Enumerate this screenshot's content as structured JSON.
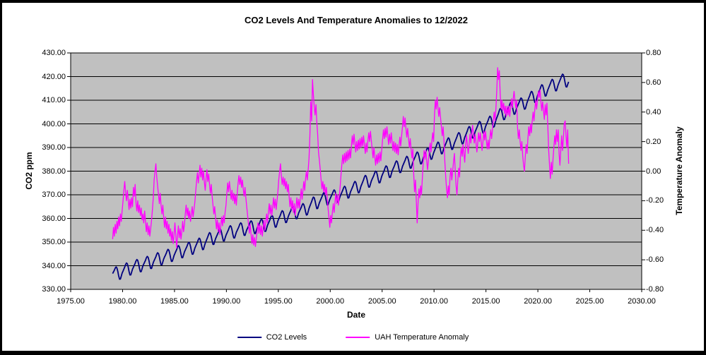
{
  "title": "CO2 Levels And Temperature Anomalies to 12/2022",
  "axes": {
    "left": {
      "title": "CO2 ppm",
      "tick_labels": [
        "430.00",
        "420.00",
        "410.00",
        "400.00",
        "390.00",
        "380.00",
        "370.00",
        "360.00",
        "350.00",
        "340.00",
        "330.00"
      ]
    },
    "right": {
      "title": "Temperature Anomaly",
      "tick_labels": [
        "0.80",
        "0.60",
        "0.40",
        "0.20",
        "0.00",
        "-0.20",
        "-0.40",
        "-0.60",
        "-0.80"
      ]
    },
    "x": {
      "title": "Date",
      "tick_labels": [
        "1975.00",
        "1980.00",
        "1985.00",
        "1990.00",
        "1995.00",
        "2000.00",
        "2005.00",
        "2010.00",
        "2015.00",
        "2020.00",
        "2025.00",
        "2030.00"
      ]
    }
  },
  "legend": {
    "items": [
      {
        "label": "CO2 Levels"
      },
      {
        "label": "UAH Temperature Anomaly"
      }
    ]
  },
  "colors": {
    "plot_bg": "#C0C0C0",
    "gridline": "#000000",
    "axis": "#000000",
    "frame_border": "#000000",
    "co2_line": "#000080",
    "temp_line": "#FF00FF"
  },
  "chart_data": {
    "type": "line",
    "title": "CO2 Levels And Temperature Anomalies to 12/2022",
    "xlabel": "Date",
    "ylabel_left": "CO2 ppm",
    "ylabel_right": "Temperature Anomaly",
    "x_range": [
      1975,
      2030
    ],
    "y_left_range": [
      330,
      430
    ],
    "y_right_range": [
      -0.8,
      0.8
    ],
    "grid": "horizontal gridlines every 10 ppm (left axis)",
    "legend_position": "bottom center",
    "series": [
      {
        "name": "CO2 Levels",
        "axis": "left",
        "color": "#000080",
        "x_start": 1979.0,
        "x_end": 2023.0,
        "resolution": "monthly sawtooth (annual mean + seasonal cycle)",
        "annual_means_1979_2022": [
          336.8,
          338.7,
          340.1,
          341.4,
          343.0,
          344.4,
          346.0,
          347.4,
          349.2,
          351.6,
          353.1,
          354.4,
          355.6,
          356.4,
          357.1,
          358.8,
          360.8,
          362.6,
          363.7,
          366.7,
          368.4,
          369.5,
          371.1,
          373.2,
          375.8,
          377.5,
          379.8,
          381.9,
          383.8,
          385.6,
          387.4,
          389.9,
          391.6,
          393.9,
          396.5,
          398.6,
          400.8,
          404.2,
          406.6,
          408.5,
          411.4,
          414.2,
          416.4,
          418.6
        ],
        "seasonal_cycle_ppm": [
          -0.1,
          0.6,
          1.3,
          2.2,
          2.7,
          2.2,
          0.7,
          -1.3,
          -2.9,
          -3.0,
          -1.9,
          -0.8
        ]
      },
      {
        "name": "UAH Temperature Anomaly",
        "axis": "right",
        "color": "#FF00FF",
        "x_start": 1979.0,
        "x_end": 2023.0,
        "resolution": "monthly",
        "monthly_values_1979_2022": [
          [
            -0.46,
            -0.38,
            -0.44,
            -0.36,
            -0.42,
            -0.34,
            -0.39,
            -0.31,
            -0.37,
            -0.29,
            -0.34,
            -0.27
          ],
          [
            -0.2,
            -0.13,
            -0.07,
            -0.14,
            -0.2,
            -0.13,
            -0.19,
            -0.26,
            -0.19,
            -0.25,
            -0.18,
            -0.24
          ],
          [
            -0.11,
            -0.17,
            -0.09,
            -0.21,
            -0.27,
            -0.2,
            -0.28,
            -0.23,
            -0.3,
            -0.25,
            -0.33,
            -0.29
          ],
          [
            -0.35,
            -0.27,
            -0.34,
            -0.41,
            -0.35,
            -0.43,
            -0.37,
            -0.44,
            -0.39,
            -0.33,
            -0.26,
            -0.18
          ],
          [
            -0.06,
            0.0,
            0.05,
            -0.04,
            -0.1,
            -0.16,
            -0.22,
            -0.15,
            -0.23,
            -0.29,
            -0.23,
            -0.31
          ],
          [
            -0.38,
            -0.31,
            -0.39,
            -0.34,
            -0.42,
            -0.36,
            -0.44,
            -0.39,
            -0.47,
            -0.41,
            -0.49,
            -0.43
          ],
          [
            -0.35,
            -0.43,
            -0.52,
            -0.44,
            -0.37,
            -0.45,
            -0.39,
            -0.46,
            -0.41,
            -0.34,
            -0.41,
            -0.36
          ],
          [
            -0.29,
            -0.23,
            -0.3,
            -0.25,
            -0.32,
            -0.27,
            -0.34,
            -0.29,
            -0.24,
            -0.31,
            -0.26,
            -0.21
          ],
          [
            -0.14,
            -0.07,
            -0.01,
            -0.08,
            -0.02,
            0.04,
            -0.04,
            0.02,
            -0.06,
            0.0,
            -0.07,
            -0.13
          ],
          [
            -0.05,
            0.01,
            -0.07,
            -0.02,
            -0.09,
            -0.15,
            -0.09,
            -0.17,
            -0.23,
            -0.29,
            -0.24,
            -0.32
          ],
          [
            -0.39,
            -0.33,
            -0.41,
            -0.35,
            -0.43,
            -0.37,
            -0.31,
            -0.37,
            -0.3,
            -0.35,
            -0.28,
            -0.23
          ],
          [
            -0.15,
            -0.08,
            -0.14,
            -0.07,
            -0.13,
            -0.19,
            -0.13,
            -0.2,
            -0.15,
            -0.22,
            -0.16,
            -0.23
          ],
          [
            -0.15,
            -0.08,
            -0.03,
            -0.09,
            -0.04,
            -0.11,
            -0.06,
            -0.12,
            -0.17,
            -0.11,
            -0.18,
            -0.24
          ],
          [
            -0.3,
            -0.36,
            -0.42,
            -0.36,
            -0.43,
            -0.49,
            -0.43,
            -0.5,
            -0.45,
            -0.51,
            -0.46,
            -0.41
          ],
          [
            -0.35,
            -0.42,
            -0.36,
            -0.43,
            -0.37,
            -0.44,
            -0.38,
            -0.33,
            -0.4,
            -0.34,
            -0.29,
            -0.35
          ],
          [
            -0.28,
            -0.22,
            -0.29,
            -0.23,
            -0.3,
            -0.24,
            -0.18,
            -0.25,
            -0.19,
            -0.26,
            -0.2,
            -0.14
          ],
          [
            -0.06,
            0.0,
            0.05,
            -0.03,
            -0.09,
            -0.04,
            -0.1,
            -0.05,
            -0.12,
            -0.07,
            -0.14,
            -0.09
          ],
          [
            -0.17,
            -0.24,
            -0.18,
            -0.26,
            -0.2,
            -0.28,
            -0.22,
            -0.3,
            -0.24,
            -0.18,
            -0.25,
            -0.19
          ],
          [
            -0.25,
            -0.18,
            -0.12,
            -0.19,
            -0.13,
            -0.07,
            -0.13,
            -0.05,
            0.0,
            -0.06,
            0.01,
            0.09
          ],
          [
            0.24,
            0.47,
            0.34,
            0.62,
            0.52,
            0.44,
            0.38,
            0.45,
            0.33,
            0.25,
            0.13,
            0.07
          ],
          [
            0.01,
            -0.06,
            -0.12,
            -0.07,
            -0.14,
            -0.09,
            -0.16,
            -0.11,
            -0.18,
            -0.25,
            -0.31,
            -0.38
          ],
          [
            -0.3,
            -0.35,
            -0.28,
            -0.22,
            -0.28,
            -0.21,
            -0.15,
            -0.22,
            -0.16,
            -0.23,
            -0.17,
            -0.1
          ],
          [
            -0.02,
            0.05,
            0.11,
            0.05,
            0.12,
            0.06,
            0.13,
            0.07,
            0.14,
            0.08,
            0.15,
            0.09
          ],
          [
            0.17,
            0.24,
            0.18,
            0.25,
            0.19,
            0.13,
            0.2,
            0.14,
            0.21,
            0.15,
            0.22,
            0.16
          ],
          [
            0.23,
            0.17,
            0.24,
            0.18,
            0.12,
            0.19,
            0.13,
            0.2,
            0.26,
            0.2,
            0.27,
            0.21
          ],
          [
            0.15,
            0.09,
            0.16,
            0.1,
            0.04,
            0.11,
            0.05,
            0.12,
            0.06,
            0.13,
            0.07,
            0.14
          ],
          [
            0.21,
            0.28,
            0.22,
            0.29,
            0.23,
            0.3,
            0.24,
            0.18,
            0.25,
            0.19,
            0.26,
            0.2
          ],
          [
            0.14,
            0.2,
            0.13,
            0.19,
            0.12,
            0.18,
            0.11,
            0.17,
            0.23,
            0.17,
            0.24,
            0.3
          ],
          [
            0.37,
            0.3,
            0.36,
            0.29,
            0.23,
            0.29,
            0.22,
            0.16,
            0.22,
            0.15,
            0.09,
            0.15
          ],
          [
            -0.02,
            -0.14,
            -0.06,
            -0.2,
            -0.35,
            -0.22,
            -0.12,
            -0.18,
            -0.1,
            -0.16,
            -0.04,
            0.06
          ],
          [
            0.14,
            0.08,
            0.14,
            0.07,
            0.01,
            0.07,
            0.13,
            0.19,
            0.13,
            0.2,
            0.26,
            0.2
          ],
          [
            0.38,
            0.48,
            0.42,
            0.5,
            0.43,
            0.37,
            0.43,
            0.36,
            0.3,
            0.24,
            0.3,
            0.2
          ],
          [
            0.06,
            -0.04,
            -0.12,
            -0.18,
            -0.1,
            -0.16,
            -0.04,
            0.02,
            -0.06,
            0.0,
            0.06,
            0.12
          ],
          [
            0.0,
            -0.1,
            -0.16,
            -0.06,
            0.02,
            -0.04,
            0.1,
            0.16,
            0.1,
            0.18,
            0.12,
            0.06
          ],
          [
            0.18,
            0.24,
            0.18,
            0.12,
            0.18,
            0.25,
            0.19,
            0.25,
            0.31,
            0.25,
            0.19,
            0.25
          ],
          [
            0.19,
            0.13,
            0.19,
            0.26,
            0.2,
            0.26,
            0.2,
            0.14,
            0.2,
            0.27,
            0.21,
            0.27
          ],
          [
            0.21,
            0.15,
            0.21,
            0.15,
            0.22,
            0.28,
            0.22,
            0.28,
            0.34,
            0.4,
            0.34,
            0.42
          ],
          [
            0.54,
            0.7,
            0.62,
            0.68,
            0.52,
            0.42,
            0.48,
            0.41,
            0.46,
            0.39,
            0.44,
            0.37
          ],
          [
            0.44,
            0.38,
            0.44,
            0.37,
            0.43,
            0.49,
            0.43,
            0.49,
            0.54,
            0.48,
            0.43,
            0.48
          ],
          [
            0.3,
            0.22,
            0.28,
            0.2,
            0.14,
            0.2,
            0.1,
            0.04,
            0.0,
            0.1,
            0.18,
            0.12
          ],
          [
            0.22,
            0.3,
            0.24,
            0.32,
            0.26,
            0.34,
            0.4,
            0.34,
            0.42,
            0.48,
            0.42,
            0.48
          ],
          [
            0.54,
            0.5,
            0.55,
            0.47,
            0.41,
            0.47,
            0.41,
            0.35,
            0.45,
            0.38,
            0.46,
            0.3
          ],
          [
            0.14,
            0.04,
            -0.05,
            0.06,
            -0.02,
            0.08,
            0.16,
            0.24,
            0.18,
            0.28,
            0.2,
            0.28
          ],
          [
            0.12,
            0.04,
            0.14,
            0.24,
            0.14,
            0.22,
            0.32,
            0.34,
            0.24,
            0.16,
            0.28,
            0.05
          ]
        ]
      }
    ]
  }
}
